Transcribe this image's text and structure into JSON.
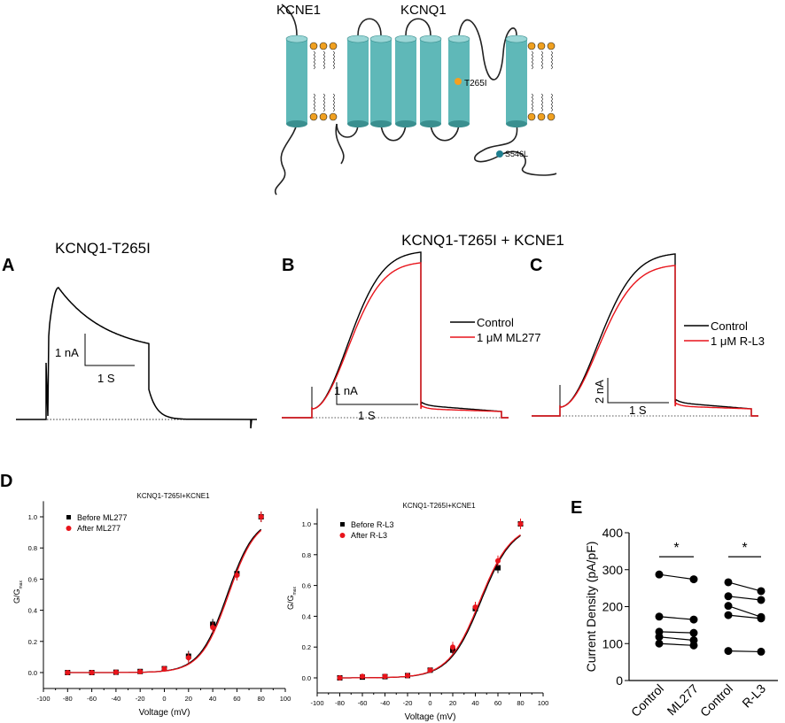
{
  "diagram": {
    "labels": {
      "kcne1": "KCNE1",
      "kcnq1": "KCNQ1",
      "mut1": "T265I",
      "mut2": "S546L"
    },
    "colors": {
      "helix": "#5fb8b8",
      "lipid_head": "#f0a020",
      "mut1": "#f5a020",
      "mut2": "#1f7f8f"
    }
  },
  "panels": {
    "A": {
      "letter": "A",
      "title": "KCNQ1-T265I",
      "scale_y": "1 nA",
      "scale_x": "1 S"
    },
    "B": {
      "letter": "B",
      "title": "KCNQ1-T265I + KCNE1",
      "scale_y": "1 nA",
      "scale_x": "1 S",
      "legend": [
        "Control",
        "1 μM ML277"
      ]
    },
    "C": {
      "letter": "C",
      "scale_y": "2 nA",
      "scale_x": "1 S",
      "legend": [
        "Control",
        "1 μM R-L3"
      ]
    },
    "D": {
      "letter": "D"
    },
    "E": {
      "letter": "E"
    }
  },
  "chart_data": [
    {
      "type": "scatter",
      "title": "KCNQ1-T265I+KCNE1",
      "xlabel": "Voltage (mV)",
      "ylabel": "G/G",
      "ylabel_sub": "max",
      "xlim": [
        -100,
        100
      ],
      "ylim": [
        -0.1,
        1.1
      ],
      "xticks": [
        "-100",
        "-80",
        "-60",
        "-40",
        "-20",
        "0",
        "20",
        "40",
        "60",
        "80",
        "100"
      ],
      "yticks": [
        "0.0",
        "0.2",
        "0.4",
        "0.6",
        "0.8",
        "1.0"
      ],
      "legend_position": "top-left",
      "x": [
        -80,
        -60,
        -40,
        -20,
        0,
        20,
        40,
        60,
        80
      ],
      "series": [
        {
          "name": "Before ML277",
          "color": "#000000",
          "marker": "square",
          "values": [
            0,
            0,
            0.002,
            0.007,
            0.025,
            0.105,
            0.31,
            0.635,
            1.0
          ],
          "fit": {
            "v_half": 52,
            "slope": 11.5
          }
        },
        {
          "name": "After ML277",
          "color": "#e8141b",
          "marker": "circle",
          "values": [
            0,
            0,
            0.002,
            0.006,
            0.025,
            0.095,
            0.29,
            0.625,
            1.0
          ],
          "fit": {
            "v_half": 53,
            "slope": 11.5
          }
        }
      ]
    },
    {
      "type": "scatter",
      "title": "KCNQ1-T265I+KCNE1",
      "xlabel": "Voltage (mV)",
      "ylabel": "G/G",
      "ylabel_sub": "max",
      "xlim": [
        -100,
        100
      ],
      "ylim": [
        -0.1,
        1.1
      ],
      "xticks": [
        "-100",
        "-80",
        "-60",
        "-40",
        "-20",
        "0",
        "20",
        "40",
        "60",
        "80",
        "100"
      ],
      "yticks": [
        "0.0",
        "0.2",
        "0.4",
        "0.6",
        "0.8",
        "1.0"
      ],
      "legend_position": "top-left",
      "x": [
        -80,
        -60,
        -40,
        -20,
        0,
        20,
        40,
        60,
        80
      ],
      "series": [
        {
          "name": "Before R-L3",
          "color": "#000000",
          "marker": "square",
          "values": [
            0,
            0.005,
            0.008,
            0.015,
            0.05,
            0.18,
            0.45,
            0.715,
            1.0
          ],
          "fit": {
            "v_half": 45,
            "slope": 14
          }
        },
        {
          "name": "After R-L3",
          "color": "#e8141b",
          "marker": "circle",
          "values": [
            0,
            0.01,
            0.01,
            0.015,
            0.05,
            0.2,
            0.46,
            0.76,
            1.0
          ],
          "fit": {
            "v_half": 44,
            "slope": 14
          }
        }
      ]
    },
    {
      "type": "line",
      "ylabel": "Current Density (pA/pF)",
      "ylim": [
        0,
        400
      ],
      "yticks": [
        "0",
        "100",
        "200",
        "300",
        "400"
      ],
      "categories": [
        "Control",
        "ML277",
        "Control",
        "R-L3"
      ],
      "significance": [
        "*",
        "*"
      ],
      "pairs": [
        {
          "groups": [
            0,
            1
          ],
          "values": [
            [
              287,
              274
            ],
            [
              173,
              165
            ],
            [
              132,
              129
            ],
            [
              118,
              109
            ],
            [
              100,
              95
            ]
          ]
        },
        {
          "groups": [
            2,
            3
          ],
          "values": [
            [
              266,
              242
            ],
            [
              228,
              218
            ],
            [
              202,
              172
            ],
            [
              177,
              168
            ],
            [
              80,
              78
            ]
          ]
        }
      ]
    }
  ]
}
